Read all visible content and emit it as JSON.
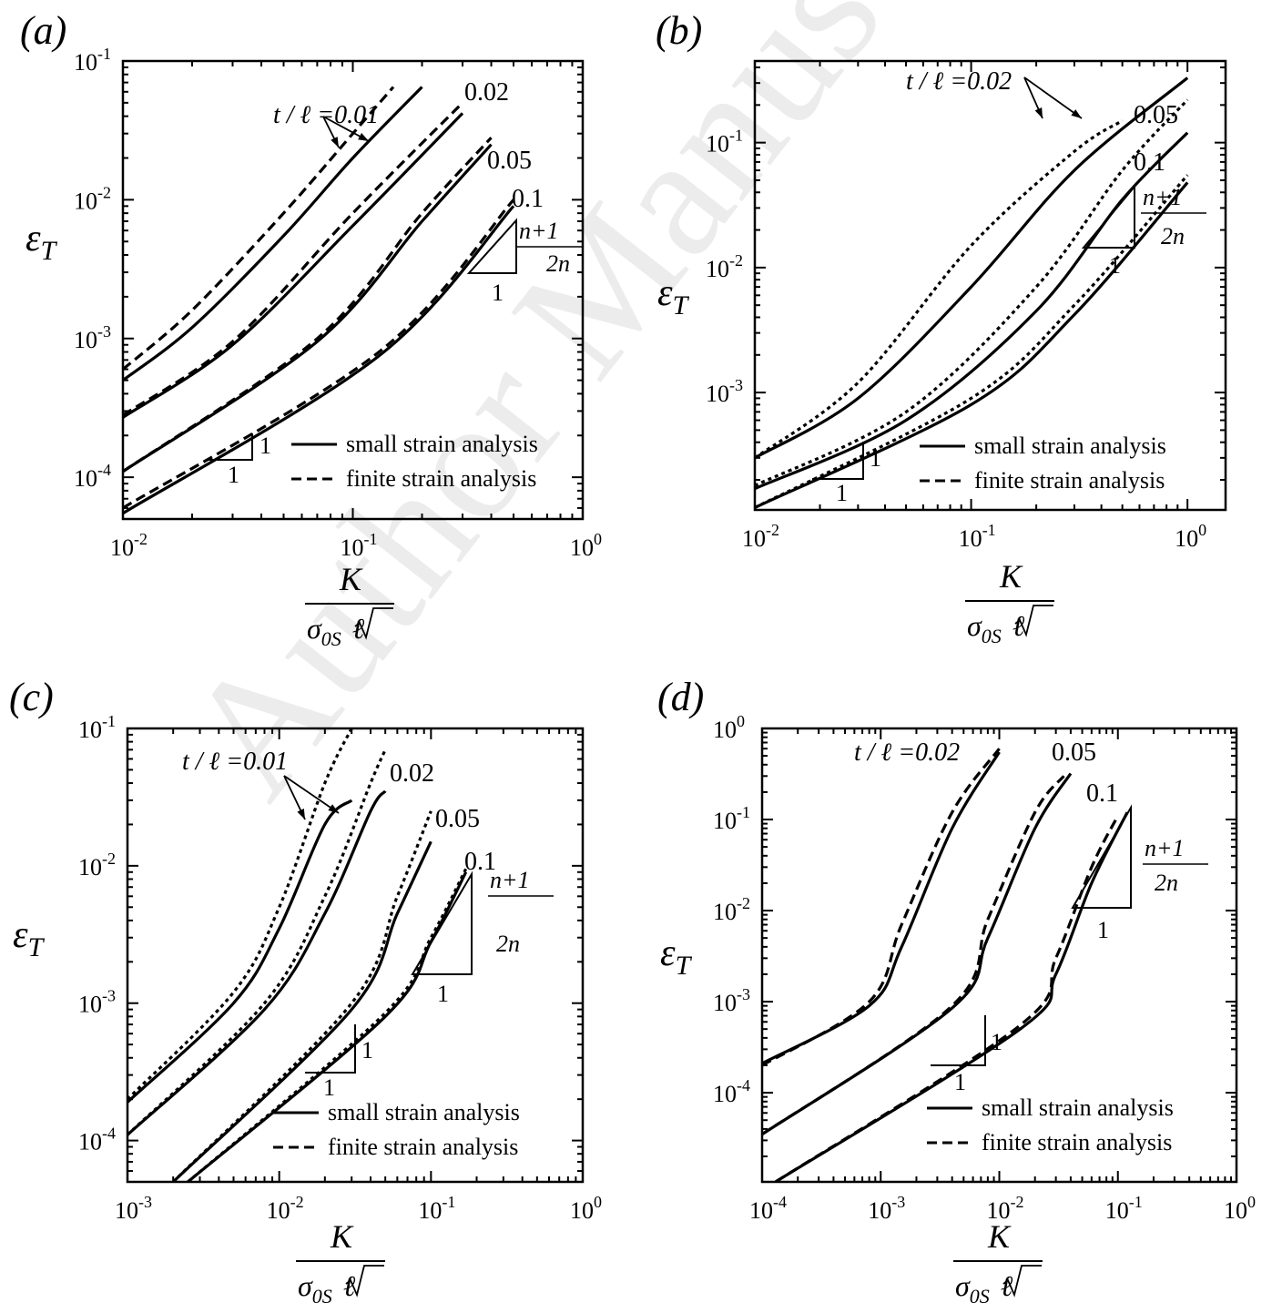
{
  "watermark": "Author Manuscript",
  "axis_labels": {
    "ylabel_sym": "ε",
    "ylabel_sub": "T",
    "xlabel_num": "K",
    "xlabel_den_sigma": "σ",
    "xlabel_den_sub": "0S",
    "xlabel_den_ell": "ℓ"
  },
  "slope_labels": {
    "one": "1",
    "numerator": "n+1",
    "denominator": "2n"
  },
  "legend": {
    "small": "small strain analysis",
    "finite": "finite strain analysis"
  },
  "chart_data": [
    {
      "panel_label": "(a)",
      "type": "line",
      "xscale": "log",
      "yscale": "log",
      "xlim": [
        0.01,
        1
      ],
      "ylim": [
        5e-05,
        0.1
      ],
      "xticks": [
        -2,
        -1,
        0
      ],
      "yticks": [
        -4,
        -3,
        -2,
        -1
      ],
      "legend_loc": "bottom-right",
      "series": [
        {
          "style": "dashed",
          "x": [
            0.01,
            0.02,
            0.05,
            0.1,
            0.15
          ],
          "y": [
            0.0006,
            0.0016,
            0.008,
            0.03,
            0.065
          ]
        },
        {
          "style": "solid",
          "x": [
            0.01,
            0.02,
            0.05,
            0.1,
            0.2
          ],
          "y": [
            0.0005,
            0.0012,
            0.0055,
            0.02,
            0.065
          ]
        },
        {
          "style": "dashed",
          "x": [
            0.01,
            0.03,
            0.1,
            0.3
          ],
          "y": [
            0.00028,
            0.00095,
            0.008,
            0.05
          ]
        },
        {
          "style": "solid",
          "x": [
            0.01,
            0.03,
            0.1,
            0.3
          ],
          "y": [
            0.00027,
            0.0009,
            0.0065,
            0.042
          ]
        },
        {
          "style": "dashed",
          "x": [
            0.01,
            0.07,
            0.2,
            0.4
          ],
          "y": [
            0.00011,
            0.001,
            0.008,
            0.028
          ]
        },
        {
          "style": "solid",
          "x": [
            0.01,
            0.07,
            0.2,
            0.4
          ],
          "y": [
            0.00011,
            0.00095,
            0.007,
            0.025
          ]
        },
        {
          "style": "dashed",
          "x": [
            0.01,
            0.13,
            0.5
          ],
          "y": [
            6e-05,
            0.0008,
            0.01
          ]
        },
        {
          "style": "solid",
          "x": [
            0.01,
            0.13,
            0.5
          ],
          "y": [
            5.5e-05,
            0.00075,
            0.009
          ]
        }
      ],
      "curve_labels": [
        {
          "text": "t / ℓ =0.01"
        },
        {
          "text": "0.02"
        },
        {
          "text": "0.05"
        },
        {
          "text": "0.1"
        }
      ]
    },
    {
      "panel_label": "(b)",
      "type": "line",
      "xscale": "log",
      "yscale": "log",
      "xlim": [
        0.01,
        1.5
      ],
      "ylim": [
        0.000115,
        0.45
      ],
      "xticks": [
        -2,
        -1,
        0
      ],
      "yticks": [
        -3,
        -2,
        -1
      ],
      "legend_loc": "bottom-right",
      "series": [
        {
          "style": "dotted",
          "x": [
            0.01,
            0.03,
            0.1,
            0.3,
            0.5
          ],
          "y": [
            0.0003,
            0.0012,
            0.015,
            0.085,
            0.15
          ]
        },
        {
          "style": "solid",
          "x": [
            0.01,
            0.03,
            0.1,
            0.3,
            1.0
          ],
          "y": [
            0.0003,
            0.0009,
            0.007,
            0.06,
            0.33
          ]
        },
        {
          "style": "dotted",
          "x": [
            0.01,
            0.05,
            0.2,
            0.5,
            1.0
          ],
          "y": [
            0.00018,
            0.0007,
            0.007,
            0.06,
            0.22
          ]
        },
        {
          "style": "solid",
          "x": [
            0.01,
            0.05,
            0.2,
            0.5,
            1.0
          ],
          "y": [
            0.00017,
            0.0006,
            0.0045,
            0.035,
            0.12
          ]
        },
        {
          "style": "dotted",
          "x": [
            0.01,
            0.1,
            0.3,
            1.0
          ],
          "y": [
            0.00012,
            0.0009,
            0.005,
            0.055
          ]
        },
        {
          "style": "solid",
          "x": [
            0.01,
            0.1,
            0.3,
            1.0
          ],
          "y": [
            0.00012,
            0.0008,
            0.0042,
            0.048
          ]
        }
      ],
      "curve_labels": [
        {
          "text": "t / ℓ =0.02"
        },
        {
          "text": "0.05"
        },
        {
          "text": "0.1"
        }
      ]
    },
    {
      "panel_label": "(c)",
      "type": "line",
      "xscale": "log",
      "yscale": "log",
      "xlim": [
        0.001,
        1
      ],
      "ylim": [
        5e-05,
        0.1
      ],
      "xticks": [
        -3,
        -2,
        -1,
        0
      ],
      "yticks": [
        -4,
        -3,
        -2,
        -1
      ],
      "legend_loc": "bottom-right",
      "series": [
        {
          "style": "dotted",
          "x": [
            0.001,
            0.005,
            0.01,
            0.02,
            0.03
          ],
          "y": [
            0.0002,
            0.0012,
            0.005,
            0.04,
            0.1
          ]
        },
        {
          "style": "solid",
          "x": [
            0.001,
            0.005,
            0.01,
            0.02,
            0.03
          ],
          "y": [
            0.00019,
            0.001,
            0.0035,
            0.02,
            0.03
          ]
        },
        {
          "style": "dotted",
          "x": [
            0.001,
            0.008,
            0.02,
            0.04,
            0.05
          ],
          "y": [
            0.00011,
            0.001,
            0.006,
            0.04,
            0.07
          ]
        },
        {
          "style": "solid",
          "x": [
            0.001,
            0.008,
            0.02,
            0.04,
            0.05
          ],
          "y": [
            0.00011,
            0.0009,
            0.0045,
            0.025,
            0.035
          ]
        },
        {
          "style": "dotted",
          "x": [
            0.002,
            0.03,
            0.06,
            0.1
          ],
          "y": [
            5e-05,
            0.001,
            0.006,
            0.025
          ]
        },
        {
          "style": "solid",
          "x": [
            0.002,
            0.03,
            0.06,
            0.1
          ],
          "y": [
            5e-05,
            0.0009,
            0.0045,
            0.015
          ]
        },
        {
          "style": "dotted",
          "x": [
            0.0025,
            0.05,
            0.1,
            0.17
          ],
          "y": [
            5e-05,
            0.00085,
            0.003,
            0.0095
          ]
        },
        {
          "style": "solid",
          "x": [
            0.0025,
            0.05,
            0.1,
            0.17
          ],
          "y": [
            5e-05,
            0.0008,
            0.0028,
            0.009
          ]
        }
      ],
      "curve_labels": [
        {
          "text": "t / ℓ =0.01"
        },
        {
          "text": "0.02"
        },
        {
          "text": "0.05"
        },
        {
          "text": "0.1"
        }
      ]
    },
    {
      "panel_label": "(d)",
      "type": "line",
      "xscale": "log",
      "yscale": "log",
      "xlim": [
        0.0001,
        1
      ],
      "ylim": [
        1.05e-05,
        1
      ],
      "xticks": [
        -4,
        -3,
        -2,
        -1,
        0
      ],
      "yticks": [
        -4,
        -3,
        -2,
        -1,
        0
      ],
      "legend_loc": "bottom-right",
      "series": [
        {
          "style": "dashed",
          "x": [
            0.0001,
            0.0008,
            0.0015,
            0.004,
            0.01
          ],
          "y": [
            0.0002,
            0.001,
            0.007,
            0.12,
            0.6
          ]
        },
        {
          "style": "solid",
          "x": [
            0.0001,
            0.0008,
            0.0015,
            0.004,
            0.01
          ],
          "y": [
            0.00021,
            0.0009,
            0.004,
            0.08,
            0.55
          ]
        },
        {
          "style": "dashed",
          "x": [
            0.0001,
            0.004,
            0.008,
            0.02,
            0.035
          ],
          "y": [
            3.5e-05,
            0.0009,
            0.008,
            0.12,
            0.3
          ]
        },
        {
          "style": "solid",
          "x": [
            0.0001,
            0.004,
            0.008,
            0.02,
            0.04
          ],
          "y": [
            3.5e-05,
            0.00085,
            0.005,
            0.08,
            0.32
          ]
        },
        {
          "style": "dashed",
          "x": [
            0.00013,
            0.015,
            0.03,
            0.06,
            0.1
          ],
          "y": [
            1.05e-05,
            0.00055,
            0.003,
            0.03,
            0.11
          ]
        },
        {
          "style": "solid",
          "x": [
            0.00013,
            0.015,
            0.03,
            0.06,
            0.12
          ],
          "y": [
            1.05e-05,
            0.0005,
            0.002,
            0.02,
            0.12
          ]
        }
      ],
      "curve_labels": [
        {
          "text": "t / ℓ =0.02"
        },
        {
          "text": "0.05"
        },
        {
          "text": "0.1"
        }
      ]
    }
  ]
}
